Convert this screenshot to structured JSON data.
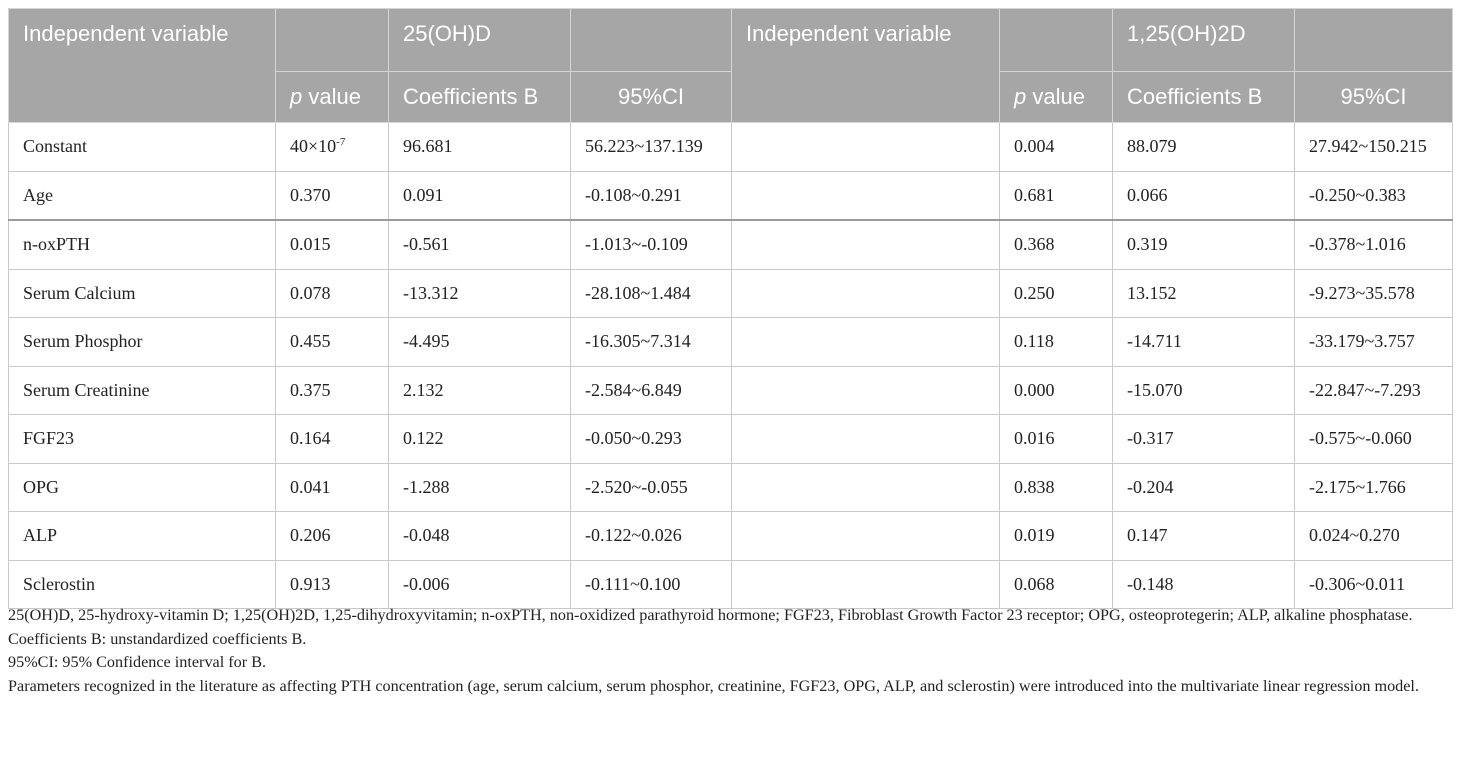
{
  "header": {
    "indep_left": "Independent variable",
    "group_left": "25(OH)D",
    "indep_right": "Independent variable",
    "group_right": "1,25(OH)2D",
    "p_italic": "p",
    "p_rest": " value",
    "coef": "Coefficients B",
    "ci": "95%CI"
  },
  "rows": [
    {
      "name": "Constant",
      "l_p": "40×10",
      "l_p_exp": "-7",
      "l_b": "96.681",
      "l_ci": "56.223~137.139",
      "r_name": "",
      "r_p": "0.004",
      "r_b": "88.079",
      "r_ci": "27.942~150.215"
    },
    {
      "name": "Age",
      "l_p": "0.370",
      "l_p_exp": "",
      "l_b": "0.091",
      "l_ci": "-0.108~0.291",
      "r_name": "",
      "r_p": "0.681",
      "r_b": "0.066",
      "r_ci": "-0.250~0.383"
    },
    {
      "name": "n-oxPTH",
      "l_p": "0.015",
      "l_p_exp": "",
      "l_b": "-0.561",
      "l_ci": "-1.013~-0.109",
      "r_name": "",
      "r_p": "0.368",
      "r_b": "0.319",
      "r_ci": "-0.378~1.016"
    },
    {
      "name": "Serum Calcium",
      "l_p": "0.078",
      "l_p_exp": "",
      "l_b": "-13.312",
      "l_ci": "-28.108~1.484",
      "r_name": "",
      "r_p": "0.250",
      "r_b": "13.152",
      "r_ci": "-9.273~35.578"
    },
    {
      "name": "Serum Phosphor",
      "l_p": "0.455",
      "l_p_exp": "",
      "l_b": "-4.495",
      "l_ci": "-16.305~7.314",
      "r_name": "",
      "r_p": "0.118",
      "r_b": "-14.711",
      "r_ci": "-33.179~3.757"
    },
    {
      "name": "Serum Creatinine",
      "l_p": "0.375",
      "l_p_exp": "",
      "l_b": "2.132",
      "l_ci": "-2.584~6.849",
      "r_name": "",
      "r_p": "0.000",
      "r_b": "-15.070",
      "r_ci": "-22.847~-7.293"
    },
    {
      "name": "FGF23",
      "l_p": "0.164",
      "l_p_exp": "",
      "l_b": "0.122",
      "l_ci": "-0.050~0.293",
      "r_name": "",
      "r_p": "0.016",
      "r_b": "-0.317",
      "r_ci": "-0.575~-0.060"
    },
    {
      "name": "OPG",
      "l_p": "0.041",
      "l_p_exp": "",
      "l_b": "-1.288",
      "l_ci": "-2.520~-0.055",
      "r_name": "",
      "r_p": "0.838",
      "r_b": "-0.204",
      "r_ci": "-2.175~1.766"
    },
    {
      "name": "ALP",
      "l_p": "0.206",
      "l_p_exp": "",
      "l_b": "-0.048",
      "l_ci": "-0.122~0.026",
      "r_name": "",
      "r_p": "0.019",
      "r_b": "0.147",
      "r_ci": "0.024~0.270"
    },
    {
      "name": "Sclerostin",
      "l_p": "0.913",
      "l_p_exp": "",
      "l_b": "-0.006",
      "l_ci": "-0.111~0.100",
      "r_name": "",
      "r_p": "0.068",
      "r_b": "-0.148",
      "r_ci": "-0.306~0.011"
    }
  ],
  "footnotes": [
    "25(OH)D, 25-hydroxy-vitamin D; 1,25(OH)2D, 1,25-dihydroxyvitamin; n-oxPTH, non-oxidized parathyroid hormone; FGF23, Fibroblast Growth Factor 23 receptor; OPG, osteoprotegerin; ALP, alkaline phosphatase.",
    "Coefficients B: unstandardized coefficients B.",
    "95%CI: 95% Confidence interval for B.",
    "Parameters recognized in the literature as affecting PTH concentration (age, serum calcium, serum phosphor, creatinine, FGF23, OPG, ALP, and sclerostin) were introduced into the multivariate linear regression model."
  ],
  "colors": {
    "header_bg": "#a6a6a6",
    "header_text": "#ffffff",
    "border": "#c9c9c9"
  }
}
